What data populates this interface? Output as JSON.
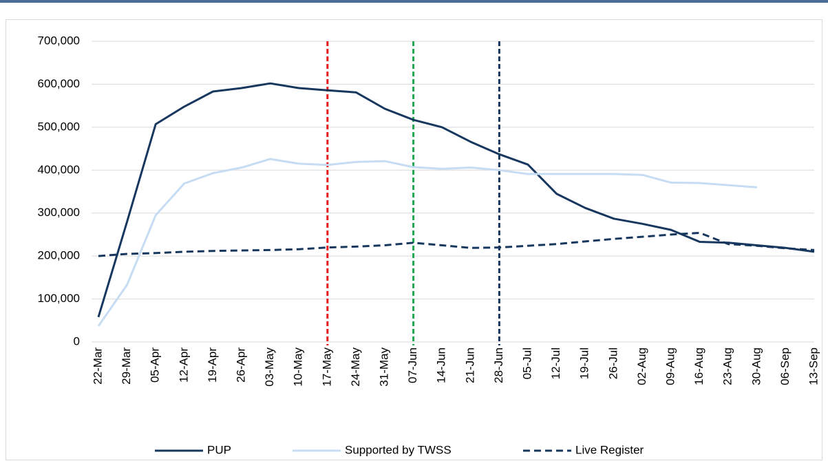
{
  "chart_data": {
    "type": "line",
    "categories": [
      "22-Mar",
      "29-Mar",
      "05-Apr",
      "12-Apr",
      "19-Apr",
      "26-Apr",
      "03-May",
      "10-May",
      "17-May",
      "24-May",
      "31-May",
      "07-Jun",
      "14-Jun",
      "21-Jun",
      "28-Jun",
      "05-Jul",
      "12-Jul",
      "19-Jul",
      "26-Jul",
      "02-Aug",
      "09-Aug",
      "16-Aug",
      "23-Aug",
      "30-Aug",
      "06-Sep",
      "13-Sep"
    ],
    "series": [
      {
        "name": "PUP",
        "color": "#17375e",
        "dash": false,
        "values": [
          58000,
          280000,
          507000,
          548000,
          583000,
          591000,
          602000,
          591000,
          586000,
          581000,
          543000,
          517000,
          500000,
          466000,
          437000,
          413000,
          345000,
          312000,
          287000,
          275000,
          261000,
          233000,
          231000,
          225000,
          219000,
          210000
        ]
      },
      {
        "name": "Supported by TWSS",
        "color": "#c6dcf3",
        "dash": false,
        "values": [
          37000,
          133000,
          295000,
          369000,
          393000,
          406000,
          426000,
          415000,
          412000,
          419000,
          421000,
          407000,
          403000,
          406000,
          400000,
          391000,
          391000,
          391000,
          391000,
          389000,
          371000,
          370000,
          365000,
          360000,
          null,
          null
        ]
      },
      {
        "name": "Live Register",
        "color": "#17375e",
        "dash": true,
        "values": [
          200000,
          205000,
          207000,
          210000,
          212000,
          213000,
          214000,
          216000,
          220000,
          222000,
          225000,
          231000,
          225000,
          219000,
          220000,
          224000,
          228000,
          234000,
          240000,
          245000,
          250000,
          254000,
          228000,
          224000,
          218000,
          214000
        ]
      }
    ],
    "vlines": [
      {
        "category": "17-May",
        "color": "#e8141b"
      },
      {
        "category": "07-Jun",
        "color": "#1fa84f"
      },
      {
        "category": "28-Jun",
        "color": "#17375e"
      }
    ],
    "ylim": [
      0,
      700000
    ],
    "yticks": [
      0,
      {
        "value": 100000,
        "label": "100,000"
      },
      {
        "value": 200000,
        "label": "200,000"
      },
      {
        "value": 300000,
        "label": "300,000"
      },
      {
        "value": 400000,
        "label": "400,000"
      },
      {
        "value": 500000,
        "label": "500,000"
      },
      {
        "value": 600000,
        "label": "600,000"
      },
      {
        "value": 700000,
        "label": "700,000"
      }
    ],
    "grid": true,
    "legend": "bottom"
  }
}
